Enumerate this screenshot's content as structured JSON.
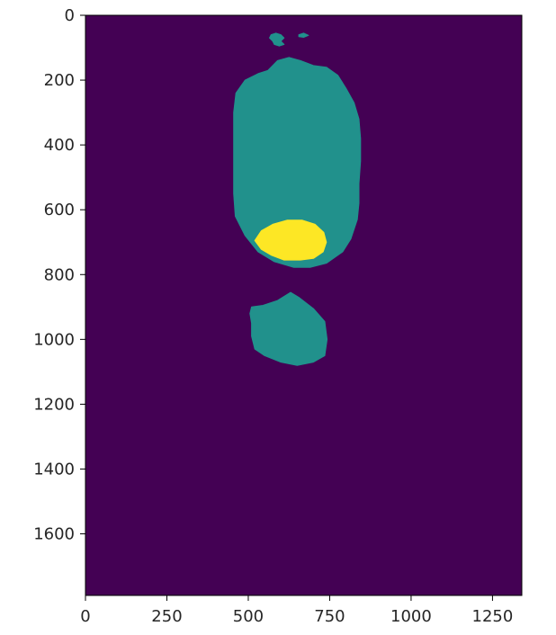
{
  "chart_data": {
    "type": "heatmap",
    "title": "",
    "xlabel": "",
    "ylabel": "",
    "xlim": [
      0,
      1340
    ],
    "ylim": [
      1790,
      0
    ],
    "y_inverted": true,
    "grid": false,
    "legend": "none",
    "x_ticks": [
      {
        "value": 0,
        "label": "0"
      },
      {
        "value": 250,
        "label": "250"
      },
      {
        "value": 500,
        "label": "500"
      },
      {
        "value": 750,
        "label": "750"
      },
      {
        "value": 1000,
        "label": "1000"
      },
      {
        "value": 1250,
        "label": "1250"
      }
    ],
    "y_ticks": [
      {
        "value": 0,
        "label": "0"
      },
      {
        "value": 200,
        "label": "200"
      },
      {
        "value": 400,
        "label": "400"
      },
      {
        "value": 600,
        "label": "600"
      },
      {
        "value": 800,
        "label": "800"
      },
      {
        "value": 1000,
        "label": "1000"
      },
      {
        "value": 1200,
        "label": "1200"
      },
      {
        "value": 1400,
        "label": "1400"
      },
      {
        "value": 1600,
        "label": "1600"
      }
    ],
    "colormap": "viridis",
    "classes": [
      {
        "value": 0,
        "color": "#440154"
      },
      {
        "value": 1,
        "color": "#21918c"
      },
      {
        "value": 2,
        "color": "#fde725"
      }
    ],
    "regions": [
      {
        "name": "large-teal-region",
        "value": 1,
        "polygon": [
          [
            575,
            155
          ],
          [
            590,
            140
          ],
          [
            625,
            130
          ],
          [
            660,
            140
          ],
          [
            700,
            155
          ],
          [
            740,
            160
          ],
          [
            775,
            185
          ],
          [
            800,
            225
          ],
          [
            825,
            270
          ],
          [
            840,
            320
          ],
          [
            845,
            380
          ],
          [
            845,
            450
          ],
          [
            840,
            520
          ],
          [
            840,
            580
          ],
          [
            835,
            630
          ],
          [
            815,
            690
          ],
          [
            790,
            730
          ],
          [
            740,
            765
          ],
          [
            690,
            778
          ],
          [
            640,
            778
          ],
          [
            580,
            760
          ],
          [
            530,
            730
          ],
          [
            490,
            680
          ],
          [
            460,
            620
          ],
          [
            455,
            550
          ],
          [
            455,
            400
          ],
          [
            455,
            300
          ],
          [
            462,
            240
          ],
          [
            490,
            200
          ],
          [
            530,
            180
          ],
          [
            560,
            170
          ]
        ]
      },
      {
        "name": "small-teal-blob-top-left",
        "value": 1,
        "polygon": [
          [
            570,
            60
          ],
          [
            585,
            55
          ],
          [
            600,
            60
          ],
          [
            610,
            70
          ],
          [
            600,
            80
          ],
          [
            610,
            90
          ],
          [
            595,
            95
          ],
          [
            580,
            90
          ],
          [
            575,
            80
          ],
          [
            565,
            70
          ]
        ]
      },
      {
        "name": "small-teal-blob-top-right",
        "value": 1,
        "polygon": [
          [
            655,
            60
          ],
          [
            670,
            55
          ],
          [
            685,
            62
          ],
          [
            670,
            68
          ],
          [
            655,
            66
          ]
        ]
      },
      {
        "name": "lower-teal-region",
        "value": 1,
        "polygon": [
          [
            510,
            900
          ],
          [
            545,
            895
          ],
          [
            590,
            880
          ],
          [
            630,
            855
          ],
          [
            655,
            870
          ],
          [
            700,
            905
          ],
          [
            735,
            945
          ],
          [
            742,
            1000
          ],
          [
            735,
            1050
          ],
          [
            700,
            1070
          ],
          [
            650,
            1080
          ],
          [
            600,
            1070
          ],
          [
            550,
            1050
          ],
          [
            520,
            1030
          ],
          [
            510,
            990
          ],
          [
            510,
            950
          ],
          [
            505,
            920
          ]
        ]
      },
      {
        "name": "yellow-region",
        "value": 2,
        "polygon": [
          [
            520,
            695
          ],
          [
            540,
            665
          ],
          [
            575,
            645
          ],
          [
            620,
            632
          ],
          [
            665,
            632
          ],
          [
            705,
            645
          ],
          [
            732,
            670
          ],
          [
            740,
            700
          ],
          [
            730,
            730
          ],
          [
            700,
            750
          ],
          [
            660,
            755
          ],
          [
            610,
            755
          ],
          [
            570,
            740
          ],
          [
            540,
            722
          ]
        ]
      }
    ]
  }
}
